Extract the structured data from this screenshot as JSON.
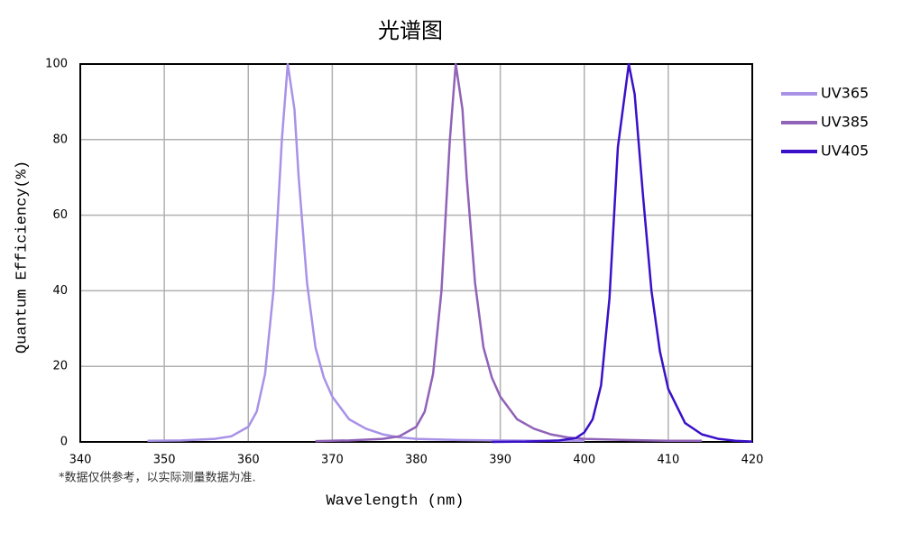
{
  "chart_data": {
    "type": "line",
    "title": "光谱图",
    "x_label": "Wavelength  (nm)",
    "y_label": "Quantum  Efficiency(%)",
    "note": "*数据仅供参考，以实际测量数据为准.",
    "xlim": [
      340,
      420
    ],
    "xticks": [
      340,
      350,
      360,
      370,
      380,
      390,
      400,
      410,
      420
    ],
    "ylim": [
      0,
      100
    ],
    "yticks": [
      0,
      20,
      40,
      60,
      80,
      100
    ],
    "grid": true,
    "legend": "right",
    "series": [
      {
        "name": "UV365",
        "color": "#a892e8",
        "x": [
          348,
          352,
          356,
          358,
          360,
          361,
          362,
          363,
          364,
          364.7,
          365.5,
          366,
          367,
          368,
          369,
          370,
          372,
          374,
          376,
          378,
          380,
          385,
          390,
          395,
          400
        ],
        "values": [
          0.3,
          0.4,
          0.8,
          1.5,
          4,
          8,
          18,
          40,
          80,
          100,
          88,
          70,
          42,
          25,
          17,
          12,
          6,
          3.5,
          2,
          1.2,
          0.8,
          0.5,
          0.4,
          0.3,
          0.3
        ]
      },
      {
        "name": "UV385",
        "color": "#9062b8",
        "x": [
          368,
          372,
          376,
          378,
          380,
          381,
          382,
          383,
          384,
          384.7,
          385.5,
          386,
          387,
          388,
          389,
          390,
          392,
          394,
          396,
          398,
          400,
          405,
          410,
          414
        ],
        "values": [
          0.2,
          0.4,
          0.8,
          1.5,
          4,
          8,
          18,
          40,
          80,
          100,
          88,
          70,
          42,
          25,
          17,
          12,
          6,
          3.5,
          2,
          1.2,
          0.8,
          0.5,
          0.3,
          0.3
        ]
      },
      {
        "name": "UV405",
        "color": "#3a10c8",
        "x": [
          389,
          393,
          397,
          399,
          400,
          401,
          402,
          403,
          404,
          405.3,
          406,
          407,
          408,
          409,
          410,
          412,
          414,
          416,
          418,
          420
        ],
        "values": [
          0,
          0.1,
          0.4,
          1,
          2.5,
          6,
          15,
          38,
          78,
          100,
          92,
          65,
          40,
          24,
          14,
          5,
          2,
          0.8,
          0.3,
          0.1
        ]
      }
    ]
  }
}
